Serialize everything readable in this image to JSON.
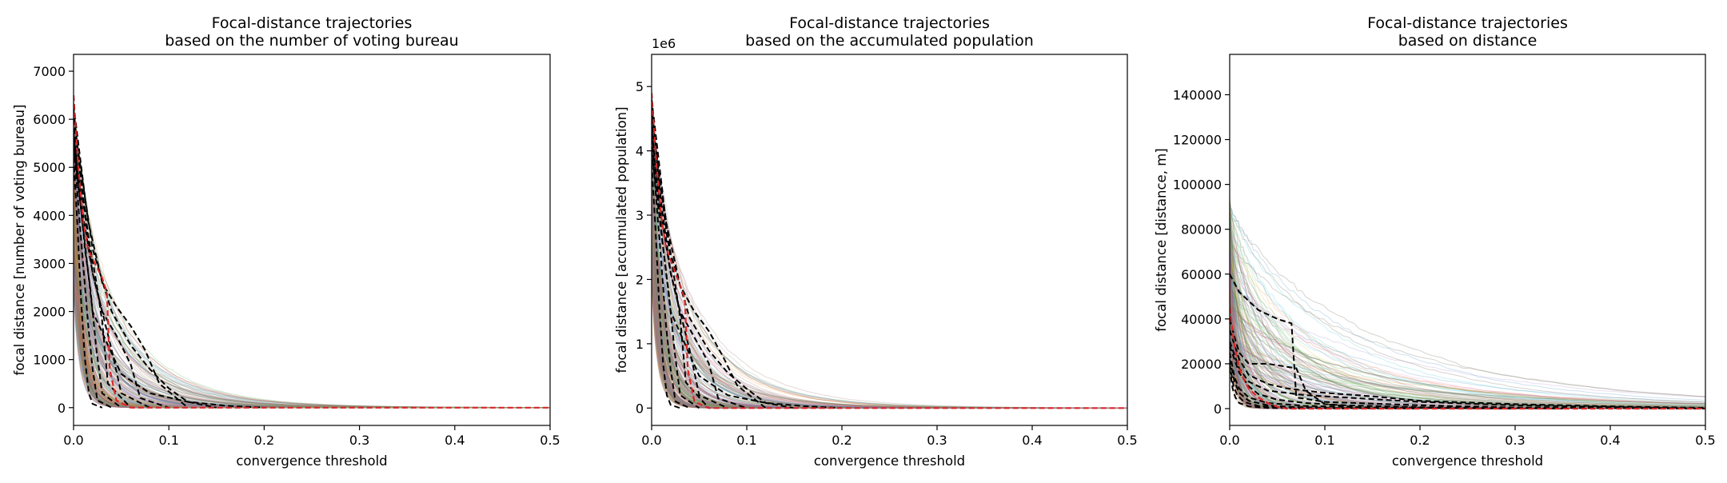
{
  "chart_data": [
    {
      "type": "line",
      "title": [
        "Focal-distance trajectories",
        "based on the number of voting bureau"
      ],
      "xlabel": "convergence threshold",
      "ylabel": "focal distance [number of voting bureau]",
      "xlim": [
        0,
        0.5
      ],
      "ylim": [
        -370,
        7350
      ],
      "xticks": [
        0,
        0.1,
        0.2,
        0.3,
        0.4,
        0.5
      ],
      "xtick_labels": [
        "0.0",
        "0.1",
        "0.2",
        "0.3",
        "0.4",
        "0.5"
      ],
      "yticks": [
        0,
        1000,
        2000,
        3000,
        4000,
        5000,
        6000,
        7000
      ],
      "ytick_labels": [
        "0",
        "1000",
        "2000",
        "3000",
        "4000",
        "5000",
        "6000",
        "7000"
      ],
      "offset_label": "",
      "grid": false,
      "legend": "none",
      "background_trajectories": {
        "count": 260,
        "y_start_range": [
          2500,
          6500
        ],
        "decay_range": [
          0.006,
          0.05
        ],
        "spread_tail": 0.25
      },
      "series": [
        {
          "style": "dashed",
          "color": "#000000",
          "x": [
            0,
            0.004,
            0.008,
            0.012,
            0.016,
            0.02,
            0.03
          ],
          "y": [
            5200,
            3800,
            2200,
            1000,
            300,
            80,
            0
          ]
        },
        {
          "style": "dashed",
          "color": "#000000",
          "x": [
            0,
            0.005,
            0.01,
            0.015,
            0.02,
            0.025,
            0.04
          ],
          "y": [
            5600,
            4200,
            3000,
            1800,
            800,
            150,
            0
          ]
        },
        {
          "style": "dashed",
          "color": "#000000",
          "x": [
            0,
            0.006,
            0.012,
            0.018,
            0.024,
            0.03,
            0.05
          ],
          "y": [
            5800,
            4500,
            3300,
            2400,
            1200,
            300,
            0
          ]
        },
        {
          "style": "dashed",
          "color": "#000000",
          "x": [
            0,
            0.008,
            0.016,
            0.024,
            0.03,
            0.036,
            0.06
          ],
          "y": [
            6000,
            4700,
            3500,
            2600,
            1800,
            500,
            0
          ]
        },
        {
          "style": "dashed",
          "color": "#000000",
          "x": [
            0,
            0.01,
            0.02,
            0.03,
            0.04,
            0.05,
            0.08
          ],
          "y": [
            5700,
            4000,
            2800,
            2000,
            1200,
            300,
            0
          ]
        },
        {
          "style": "dashed",
          "color": "#000000",
          "x": [
            0,
            0.01,
            0.02,
            0.03,
            0.045,
            0.06,
            0.07,
            0.1
          ],
          "y": [
            6200,
            4300,
            2800,
            2000,
            1500,
            900,
            200,
            0
          ]
        },
        {
          "style": "dashed",
          "color": "#000000",
          "x": [
            0,
            0.015,
            0.03,
            0.045,
            0.06,
            0.075,
            0.09,
            0.12
          ],
          "y": [
            6300,
            3900,
            2600,
            2100,
            1700,
            1200,
            500,
            0
          ]
        },
        {
          "style": "dashed",
          "color": "#000000",
          "x": [
            0,
            0.02,
            0.04,
            0.06,
            0.08,
            0.1,
            0.12,
            0.15
          ],
          "y": [
            6000,
            3300,
            2000,
            1300,
            800,
            400,
            120,
            0
          ]
        },
        {
          "style": "dashed",
          "color": "#000000",
          "x": [
            0,
            0.02,
            0.05,
            0.08,
            0.12,
            0.16,
            0.2
          ],
          "y": [
            5500,
            2000,
            700,
            300,
            120,
            40,
            0
          ]
        },
        {
          "style": "dashed",
          "color": "#d62728",
          "x": [
            0,
            0.005,
            0.01,
            0.015,
            0.02,
            0.025,
            0.03,
            0.035,
            0.038,
            0.045,
            0.06,
            0.5
          ],
          "y": [
            6500,
            5000,
            3900,
            3300,
            3100,
            2900,
            2700,
            2400,
            800,
            150,
            0,
            0
          ]
        }
      ]
    },
    {
      "type": "line",
      "title": [
        "Focal-distance trajectories",
        "based on the accumulated population"
      ],
      "xlabel": "convergence threshold",
      "ylabel": "focal distance [accumulated population]",
      "xlim": [
        0,
        0.5
      ],
      "ylim": [
        -0.27,
        5.5
      ],
      "xticks": [
        0,
        0.1,
        0.2,
        0.3,
        0.4,
        0.5
      ],
      "xtick_labels": [
        "0.0",
        "0.1",
        "0.2",
        "0.3",
        "0.4",
        "0.5"
      ],
      "yticks": [
        0,
        1,
        2,
        3,
        4,
        5
      ],
      "ytick_labels": [
        "0",
        "1",
        "2",
        "3",
        "4",
        "5"
      ],
      "offset_label": "1e6",
      "grid": false,
      "legend": "none",
      "background_trajectories": {
        "count": 260,
        "y_start_range": [
          2.0,
          5.0
        ],
        "decay_range": [
          0.006,
          0.05
        ],
        "spread_tail": 0.25
      },
      "series": [
        {
          "style": "dashed",
          "color": "#000000",
          "x": [
            0,
            0.004,
            0.008,
            0.012,
            0.016,
            0.02,
            0.03
          ],
          "y": [
            3.8,
            2.8,
            1.6,
            0.7,
            0.2,
            0.05,
            0
          ]
        },
        {
          "style": "dashed",
          "color": "#000000",
          "x": [
            0,
            0.005,
            0.01,
            0.015,
            0.02,
            0.025,
            0.04
          ],
          "y": [
            4.2,
            3.2,
            2.3,
            1.3,
            0.6,
            0.1,
            0
          ]
        },
        {
          "style": "dashed",
          "color": "#000000",
          "x": [
            0,
            0.006,
            0.012,
            0.018,
            0.024,
            0.03,
            0.05
          ],
          "y": [
            4.4,
            3.4,
            2.5,
            1.8,
            0.9,
            0.2,
            0
          ]
        },
        {
          "style": "dashed",
          "color": "#000000",
          "x": [
            0,
            0.008,
            0.016,
            0.024,
            0.03,
            0.036,
            0.06
          ],
          "y": [
            4.5,
            3.6,
            2.7,
            2.0,
            1.4,
            0.4,
            0
          ]
        },
        {
          "style": "dashed",
          "color": "#000000",
          "x": [
            0,
            0.01,
            0.02,
            0.03,
            0.04,
            0.05,
            0.08
          ],
          "y": [
            4.3,
            3.0,
            2.1,
            1.5,
            0.9,
            0.2,
            0
          ]
        },
        {
          "style": "dashed",
          "color": "#000000",
          "x": [
            0,
            0.01,
            0.02,
            0.03,
            0.045,
            0.06,
            0.07,
            0.1
          ],
          "y": [
            4.7,
            3.2,
            2.1,
            1.5,
            1.1,
            0.7,
            0.15,
            0
          ]
        },
        {
          "style": "dashed",
          "color": "#000000",
          "x": [
            0,
            0.015,
            0.03,
            0.045,
            0.06,
            0.075,
            0.09,
            0.12
          ],
          "y": [
            4.8,
            2.9,
            1.9,
            1.5,
            1.2,
            0.8,
            0.35,
            0
          ]
        },
        {
          "style": "dashed",
          "color": "#000000",
          "x": [
            0,
            0.02,
            0.04,
            0.06,
            0.08,
            0.1,
            0.12,
            0.15
          ],
          "y": [
            4.5,
            2.4,
            1.4,
            0.9,
            0.55,
            0.3,
            0.08,
            0
          ]
        },
        {
          "style": "dashed",
          "color": "#000000",
          "x": [
            0,
            0.02,
            0.05,
            0.08,
            0.12,
            0.16,
            0.2
          ],
          "y": [
            4.0,
            1.5,
            0.5,
            0.2,
            0.08,
            0.03,
            0
          ]
        },
        {
          "style": "dashed",
          "color": "#d62728",
          "x": [
            0,
            0.005,
            0.01,
            0.015,
            0.02,
            0.025,
            0.03,
            0.035,
            0.038,
            0.045,
            0.06,
            0.5
          ],
          "y": [
            4.9,
            3.8,
            3.0,
            2.5,
            2.3,
            2.1,
            1.9,
            1.7,
            0.6,
            0.1,
            0,
            0
          ]
        }
      ]
    },
    {
      "type": "line",
      "title": [
        "Focal-distance trajectories",
        "based on distance"
      ],
      "xlabel": "convergence threshold",
      "ylabel": "focal distance [distance, m]",
      "xlim": [
        0,
        0.5
      ],
      "ylim": [
        -7500,
        158000
      ],
      "xticks": [
        0,
        0.1,
        0.2,
        0.3,
        0.4,
        0.5
      ],
      "xtick_labels": [
        "0.0",
        "0.1",
        "0.2",
        "0.3",
        "0.4",
        "0.5"
      ],
      "yticks": [
        0,
        20000,
        40000,
        60000,
        80000,
        100000,
        120000,
        140000
      ],
      "ytick_labels": [
        "0",
        "20000",
        "40000",
        "60000",
        "80000",
        "100000",
        "120000",
        "140000"
      ],
      "offset_label": "",
      "grid": false,
      "legend": "none",
      "background_trajectories": {
        "count": 260,
        "y_start_range": [
          20000,
          95000
        ],
        "decay_range": [
          0.004,
          0.2
        ],
        "spread_tail": 0.5
      },
      "series": [
        {
          "style": "dashed",
          "color": "#000000",
          "x": [
            0,
            0.01,
            0.02,
            0.03,
            0.05,
            0.065,
            0.07,
            0.1,
            0.2,
            0.3,
            0.5
          ],
          "y": [
            60000,
            52000,
            48000,
            44000,
            40000,
            38000,
            5000,
            3000,
            1500,
            500,
            0
          ]
        },
        {
          "style": "dashed",
          "color": "#000000",
          "x": [
            0,
            0.005,
            0.01,
            0.02,
            0.04,
            0.07,
            0.08,
            0.1,
            0.15
          ],
          "y": [
            40000,
            32000,
            25000,
            20000,
            20000,
            18000,
            8000,
            2000,
            0
          ]
        },
        {
          "style": "dashed",
          "color": "#000000",
          "x": [
            0,
            0.01,
            0.02,
            0.04,
            0.06,
            0.1,
            0.15,
            0.2,
            0.3,
            0.4,
            0.5
          ],
          "y": [
            35000,
            22000,
            15000,
            11000,
            9000,
            7000,
            5500,
            3500,
            2000,
            1000,
            300
          ]
        },
        {
          "style": "dashed",
          "color": "#000000",
          "x": [
            0,
            0.01,
            0.02,
            0.04,
            0.08,
            0.12,
            0.2,
            0.3,
            0.5
          ],
          "y": [
            30000,
            18000,
            12000,
            8000,
            6000,
            5000,
            3000,
            1500,
            0
          ]
        },
        {
          "style": "dashed",
          "color": "#000000",
          "x": [
            0,
            0.01,
            0.02,
            0.03,
            0.05,
            0.08,
            0.12,
            0.2,
            0.35
          ],
          "y": [
            28000,
            16000,
            10000,
            6500,
            4000,
            2500,
            1500,
            600,
            0
          ]
        },
        {
          "style": "dashed",
          "color": "#000000",
          "x": [
            0,
            0.005,
            0.01,
            0.02,
            0.04,
            0.08,
            0.15,
            0.3
          ],
          "y": [
            25000,
            14000,
            9000,
            5000,
            2500,
            1200,
            500,
            0
          ]
        },
        {
          "style": "dashed",
          "color": "#000000",
          "x": [
            0,
            0.005,
            0.01,
            0.02,
            0.04,
            0.06,
            0.1,
            0.2
          ],
          "y": [
            22000,
            12000,
            7000,
            3500,
            1500,
            800,
            300,
            0
          ]
        },
        {
          "style": "dashed",
          "color": "#000000",
          "x": [
            0,
            0.003,
            0.006,
            0.01,
            0.02,
            0.04,
            0.08
          ],
          "y": [
            18000,
            9000,
            5000,
            2500,
            1000,
            300,
            0
          ]
        },
        {
          "style": "dashed",
          "color": "#000000",
          "x": [
            0,
            0.004,
            0.008,
            0.015,
            0.03,
            0.06,
            0.12
          ],
          "y": [
            20000,
            10000,
            6000,
            3000,
            1200,
            400,
            0
          ]
        },
        {
          "style": "dashed",
          "color": "#d62728",
          "x": [
            0,
            0.005,
            0.01,
            0.015,
            0.02,
            0.03,
            0.04,
            0.05,
            0.06,
            0.5
          ],
          "y": [
            45000,
            28000,
            18000,
            13000,
            9000,
            5000,
            2500,
            800,
            0,
            0
          ]
        }
      ]
    }
  ]
}
